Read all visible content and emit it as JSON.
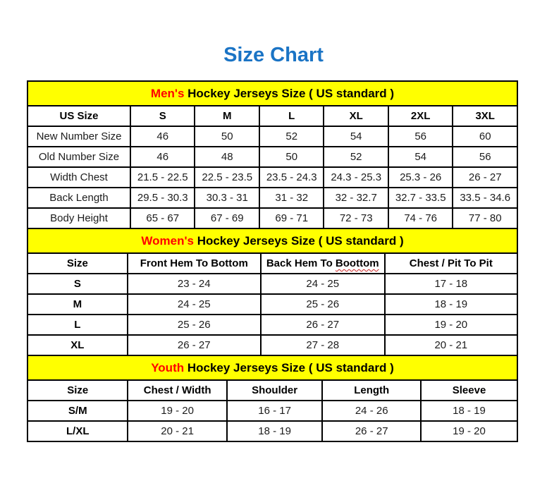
{
  "page": {
    "title": "Size Chart"
  },
  "colors": {
    "title_blue": "#1B74C5",
    "section_yellow": "#FFFF00",
    "accent_red": "#FF0000",
    "border_black": "#000000"
  },
  "tables": [
    {
      "id": "mens",
      "header": {
        "highlight": "Men's",
        "rest": " Hockey Jerseys Size ( US standard )"
      },
      "columns": [
        {
          "label": "US Size"
        },
        {
          "label": "S"
        },
        {
          "label": "M"
        },
        {
          "label": "L"
        },
        {
          "label": "XL"
        },
        {
          "label": "2XL"
        },
        {
          "label": "3XL"
        }
      ],
      "rows": [
        {
          "label": "New Number Size",
          "values": [
            "46",
            "50",
            "52",
            "54",
            "56",
            "60"
          ]
        },
        {
          "label": "Old Number Size",
          "values": [
            "46",
            "48",
            "50",
            "52",
            "54",
            "56"
          ]
        },
        {
          "label": "Width Chest",
          "values": [
            "21.5 - 22.5",
            "22.5 - 23.5",
            "23.5 - 24.3",
            "24.3 - 25.3",
            "25.3 - 26",
            "26 - 27"
          ]
        },
        {
          "label": "Back Length",
          "values": [
            "29.5 - 30.3",
            "30.3 - 31",
            "31 - 32",
            "32 - 32.7",
            "32.7 - 33.5",
            "33.5 - 34.6"
          ]
        },
        {
          "label": "Body Height",
          "values": [
            "65 - 67",
            "67 - 69",
            "69 - 71",
            "72 - 73",
            "74 - 76",
            "77 - 80"
          ]
        }
      ]
    },
    {
      "id": "womens",
      "header": {
        "highlight": "Women's",
        "rest": " Hockey Jerseys Size ( US standard )"
      },
      "columns": [
        {
          "label": "Size"
        },
        {
          "label": "Front Hem To Bottom"
        },
        {
          "label": "Back Hem To Boottom",
          "misspelled_part": "Boottom"
        },
        {
          "label": "Chest / Pit To Pit"
        }
      ],
      "rows": [
        {
          "label": "S",
          "values": [
            "23 - 24",
            "24 - 25",
            "17 - 18"
          ]
        },
        {
          "label": "M",
          "values": [
            "24 - 25",
            "25 - 26",
            "18 - 19"
          ]
        },
        {
          "label": "L",
          "values": [
            "25 - 26",
            "26 - 27",
            "19 - 20"
          ]
        },
        {
          "label": "XL",
          "values": [
            "26 - 27",
            "27 - 28",
            "20 - 21"
          ]
        }
      ]
    },
    {
      "id": "youth",
      "header": {
        "highlight": "Youth",
        "rest": " Hockey Jerseys Size ( US standard )"
      },
      "columns": [
        {
          "label": "Size"
        },
        {
          "label": "Chest / Width"
        },
        {
          "label": "Shoulder"
        },
        {
          "label": "Length"
        },
        {
          "label": "Sleeve"
        }
      ],
      "rows": [
        {
          "label": "S/M",
          "values": [
            "19 - 20",
            "16 - 17",
            "24 - 26",
            "18 - 19"
          ]
        },
        {
          "label": "L/XL",
          "values": [
            "20 - 21",
            "18 - 19",
            "26 - 27",
            "19 - 20"
          ]
        }
      ]
    }
  ]
}
